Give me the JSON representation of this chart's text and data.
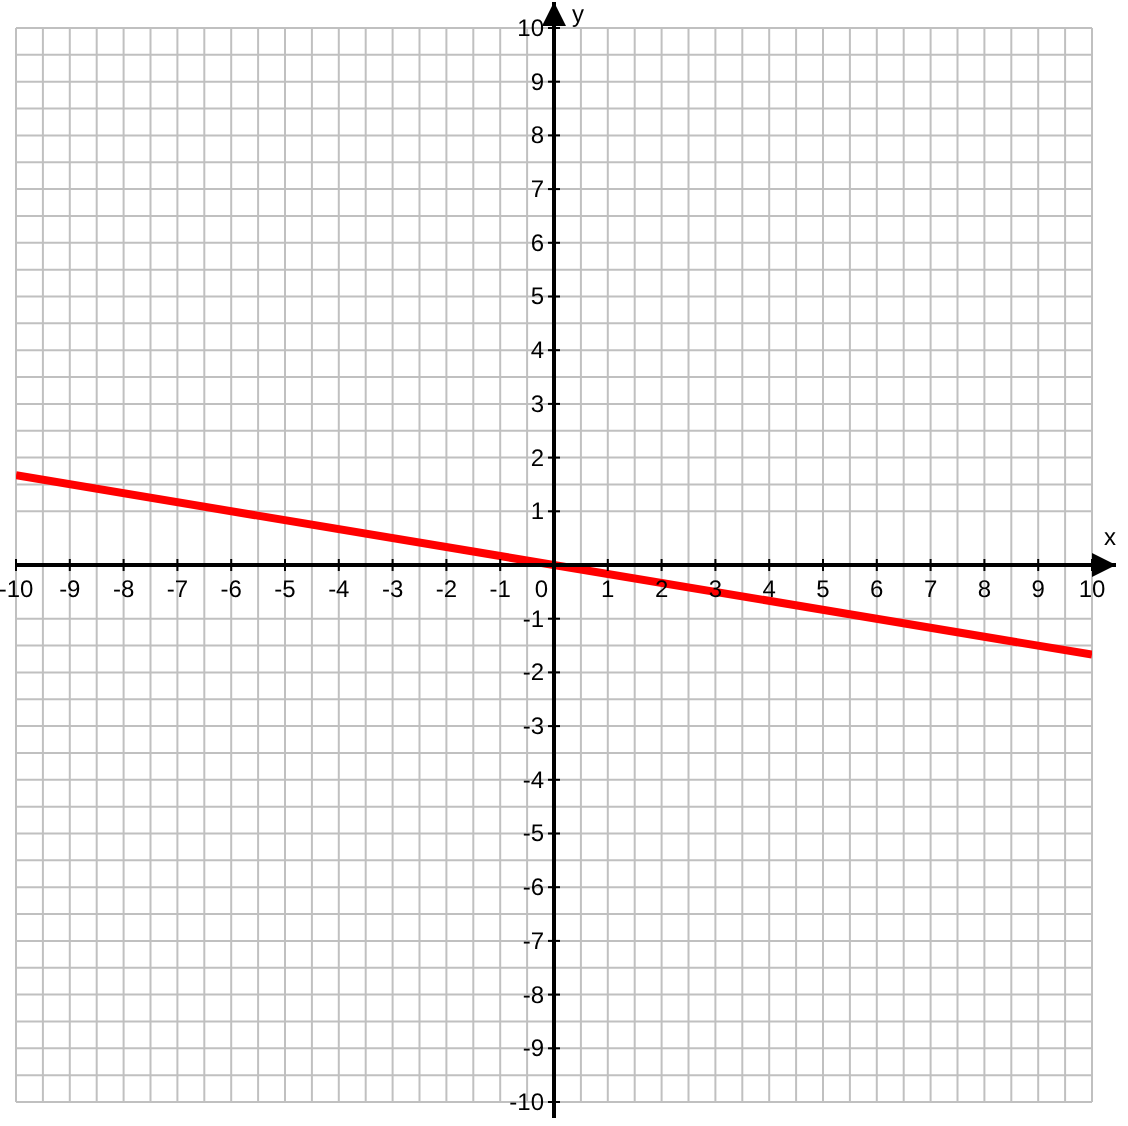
{
  "chart_data": {
    "type": "line",
    "xlabel": "x",
    "ylabel": "y",
    "x": [
      -10,
      10
    ],
    "series": [
      {
        "color": "#ff0000",
        "values": [
          1.67,
          -1.67
        ]
      }
    ],
    "xlim": [
      -10,
      10
    ],
    "ylim": [
      -10,
      10
    ],
    "xticks": [
      -10,
      -9,
      -8,
      -7,
      -6,
      -5,
      -4,
      -3,
      -2,
      -1,
      0,
      1,
      2,
      3,
      4,
      5,
      6,
      7,
      8,
      9,
      10
    ],
    "yticks": [
      -10,
      -9,
      -8,
      -7,
      -6,
      -5,
      -4,
      -3,
      -2,
      -1,
      1,
      2,
      3,
      4,
      5,
      6,
      7,
      8,
      9,
      10
    ],
    "grid": true,
    "marker": "none",
    "line_style": "solid"
  }
}
